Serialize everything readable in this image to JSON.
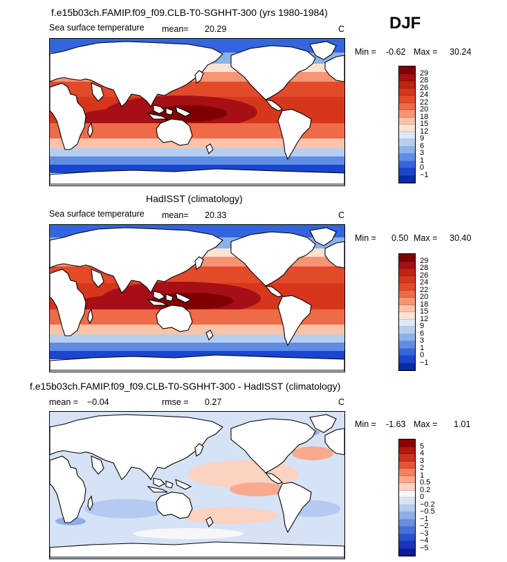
{
  "season": "DJF",
  "panels": [
    {
      "title": "f.e15b03ch.FAMIP.f09_f09.CLB-T0-SGHHT-300 (yrs 1980-1984)",
      "variable": "Sea surface temperature",
      "mean_label": "mean=",
      "mean_value": "20.29",
      "units": "C",
      "min_label": "Min =",
      "min_value": "-0.62",
      "max_label": "Max =",
      "max_value": "30.24",
      "levels": [
        "29",
        "28",
        "26",
        "24",
        "22",
        "20",
        "18",
        "15",
        "12",
        "9",
        "6",
        "3",
        "1",
        "0",
        "−1"
      ]
    },
    {
      "title": "HadISST (climatology)",
      "variable": "Sea surface temperature",
      "mean_label": "mean=",
      "mean_value": "20.33",
      "units": "C",
      "min_label": "Min =",
      "min_value": "0.50",
      "max_label": "Max =",
      "max_value": "30.40",
      "levels": [
        "29",
        "28",
        "26",
        "24",
        "22",
        "20",
        "18",
        "15",
        "12",
        "9",
        "6",
        "3",
        "1",
        "0",
        "−1"
      ]
    },
    {
      "title": "f.e15b03ch.FAMIP.f09_f09.CLB-T0-SGHHT-300 - HadISST (climatology)",
      "mean_label": "mean =",
      "mean_value": "−0.04",
      "rmse_label": "rmse =",
      "rmse_value": "0.27",
      "units": "C",
      "min_label": "Min =",
      "min_value": "-1.63",
      "max_label": "Max =",
      "max_value": "1.01",
      "levels": [
        "5",
        "4",
        "3",
        "2",
        "1",
        "0.5",
        "0.2",
        "0",
        "−0.2",
        "−0.5",
        "−1",
        "−2",
        "−3",
        "−4",
        "−5"
      ]
    }
  ],
  "colors": {
    "sst_scale": [
      "#7f0000",
      "#a50f15",
      "#c0230f",
      "#d6361c",
      "#e34a2a",
      "#ef6a47",
      "#f79474",
      "#fcc3a8",
      "#fbe3d3",
      "#dce9f7",
      "#b6cff0",
      "#8cb2ec",
      "#5f8de6",
      "#3565de",
      "#1a45cf",
      "#0a2ca8"
    ],
    "diff_scale": [
      "#8b0000",
      "#b2180e",
      "#d0301d",
      "#e65435",
      "#f3805f",
      "#f9a98d",
      "#fcd2c0",
      "#f7f7f7",
      "#d6e2f6",
      "#b4caf0",
      "#8faee8",
      "#6a8ee2",
      "#4670d9",
      "#2a50cd",
      "#1a35b8",
      "#0a1c96"
    ]
  },
  "chart_data": [
    {
      "type": "heatmap",
      "title": "f.e15b03ch.FAMIP.f09_f09.CLB-T0-SGHHT-300 (yrs 1980-1984)",
      "subtitle": "Sea surface temperature",
      "units": "C",
      "mean": 20.29,
      "min": -0.62,
      "max": 30.24,
      "contour_levels": [
        -1,
        0,
        1,
        3,
        6,
        9,
        12,
        15,
        18,
        20,
        22,
        24,
        26,
        28,
        29
      ],
      "map": "global lat-lon, 0-360E, 90S-90N"
    },
    {
      "type": "heatmap",
      "title": "HadISST (climatology)",
      "subtitle": "Sea surface temperature",
      "units": "C",
      "mean": 20.33,
      "min": 0.5,
      "max": 30.4,
      "contour_levels": [
        -1,
        0,
        1,
        3,
        6,
        9,
        12,
        15,
        18,
        20,
        22,
        24,
        26,
        28,
        29
      ],
      "map": "global lat-lon, 0-360E, 90S-90N"
    },
    {
      "type": "heatmap",
      "title": "f.e15b03ch.FAMIP.f09_f09.CLB-T0-SGHHT-300 - HadISST (climatology)",
      "units": "C",
      "mean": -0.04,
      "rmse": 0.27,
      "min": -1.63,
      "max": 1.01,
      "contour_levels": [
        -5,
        -4,
        -3,
        -2,
        -1,
        -0.5,
        -0.2,
        0,
        0.2,
        0.5,
        1,
        2,
        3,
        4,
        5
      ],
      "map": "global lat-lon, 0-360E, 90S-90N"
    }
  ]
}
